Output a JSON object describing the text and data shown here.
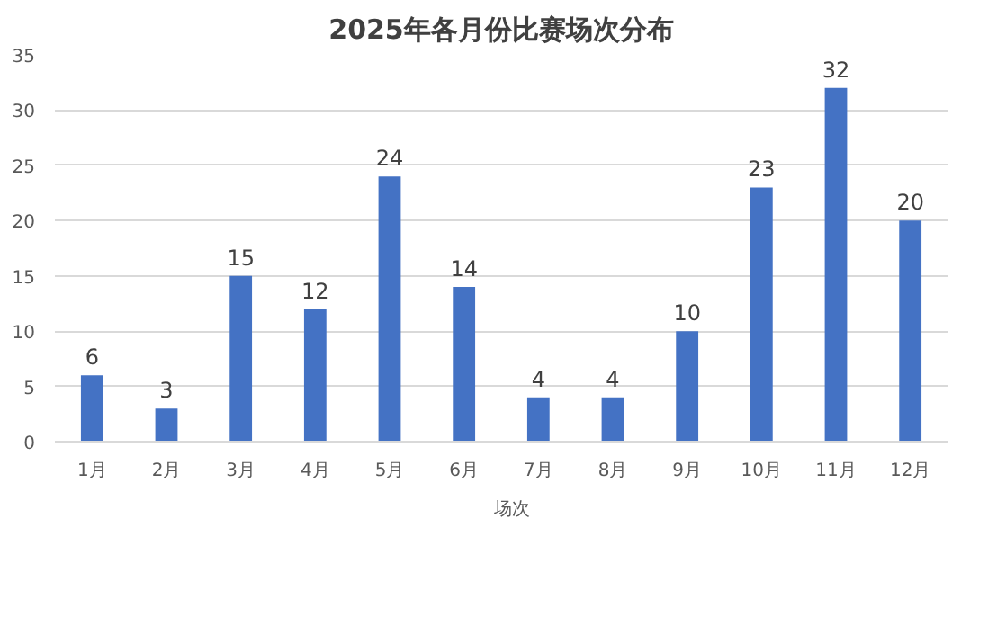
{
  "chart_data": {
    "type": "bar",
    "title": "2025年各月份比赛场次分布",
    "categories": [
      "1月",
      "2月",
      "3月",
      "4月",
      "5月",
      "6月",
      "7月",
      "8月",
      "9月",
      "10月",
      "11月",
      "12月"
    ],
    "series": [
      {
        "name": "场次",
        "color": "#4472c4",
        "values": [
          6,
          3,
          15,
          12,
          24,
          14,
          4,
          4,
          10,
          23,
          32,
          20
        ]
      }
    ],
    "ylim": [
      0,
      35
    ],
    "yticks": [
      0,
      5,
      10,
      15,
      20,
      25,
      30,
      35
    ],
    "grid": "y",
    "legend": "bottom",
    "data_labels": true
  }
}
